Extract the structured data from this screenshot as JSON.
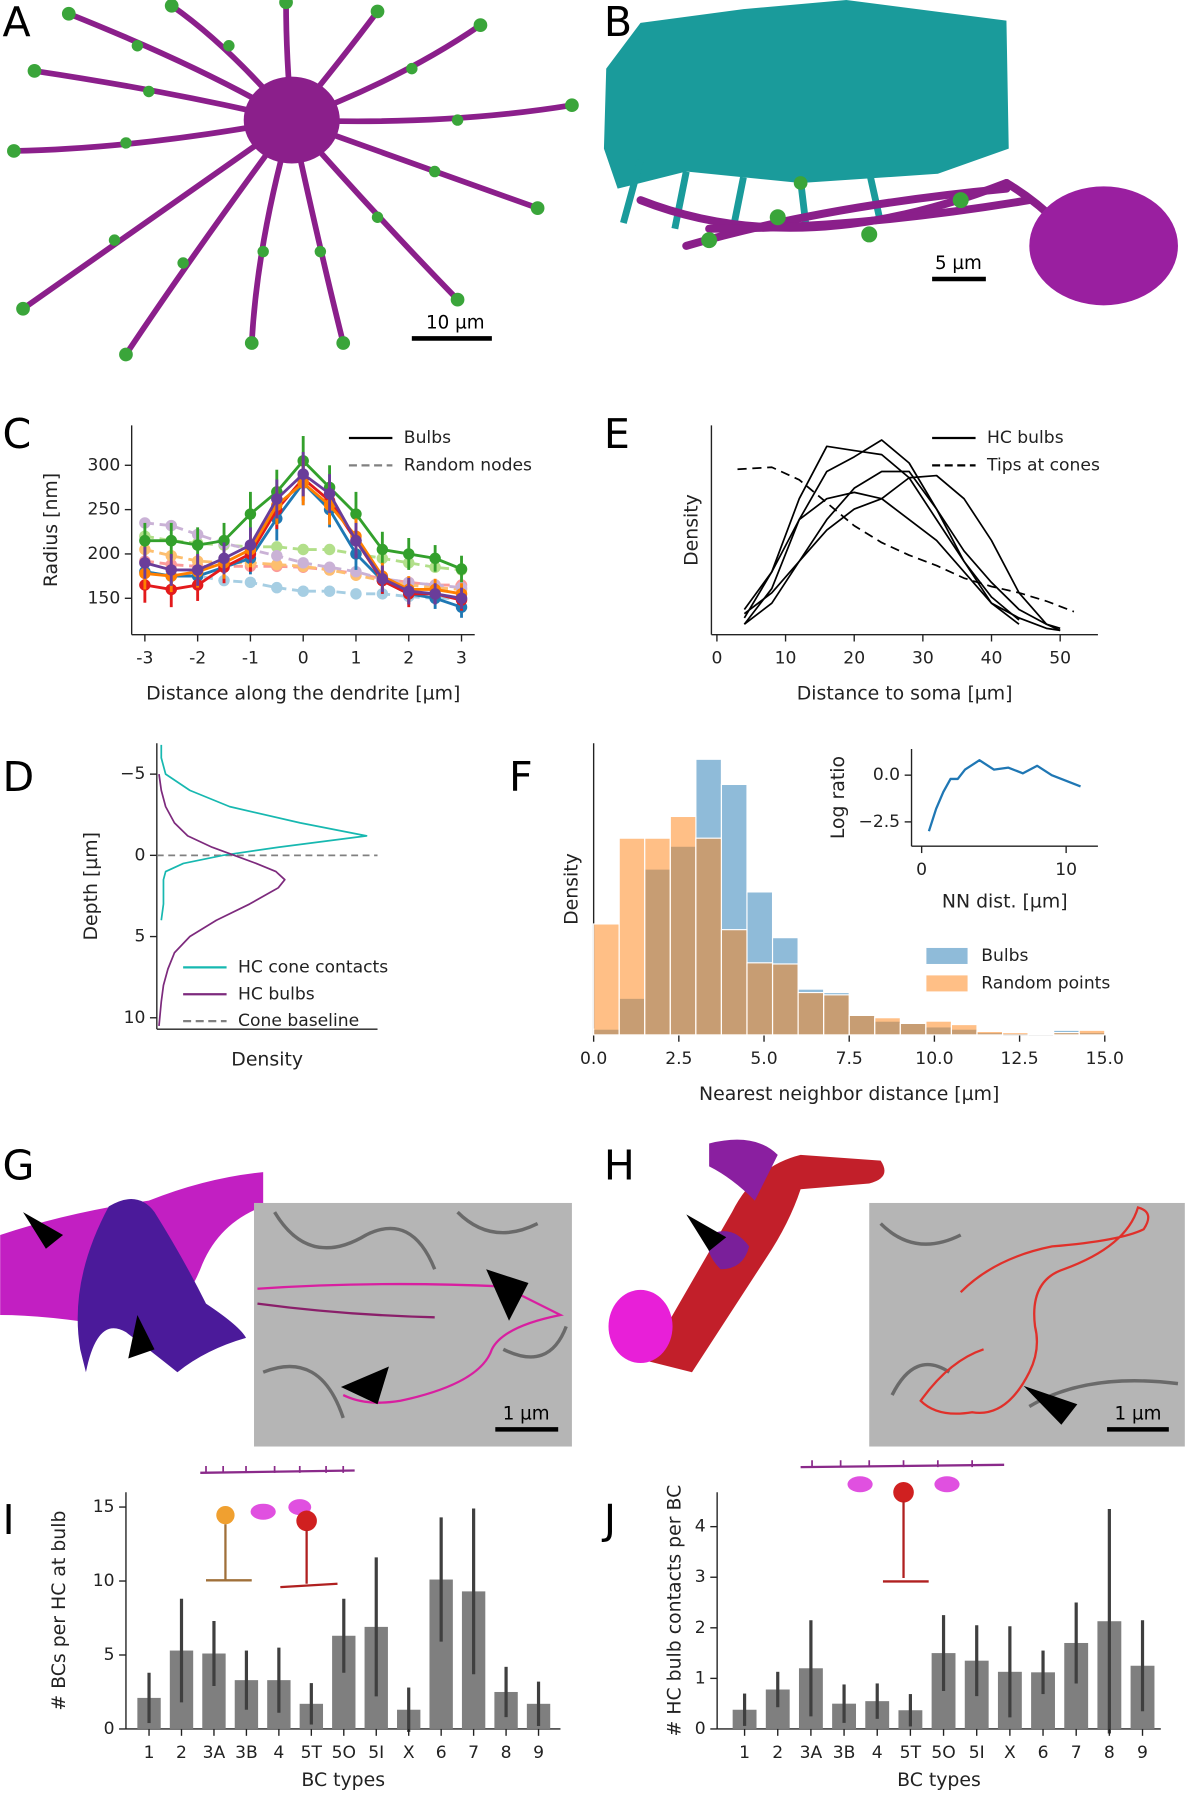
{
  "panel_labels": [
    "A",
    "B",
    "C",
    "D",
    "E",
    "F",
    "G",
    "H",
    "I",
    "J"
  ],
  "scale_bars": [
    "10 µm",
    "5 µm",
    "1 µm",
    "1 µm"
  ],
  "chart_data": [
    {
      "type": "line",
      "xlabel": "Distance along the dendrite [µm]",
      "ylabel": "Radius [nm]",
      "x": [
        -3,
        -2.5,
        -2,
        -1.5,
        -1,
        -0.5,
        0,
        0.5,
        1,
        1.5,
        2,
        2.5,
        3
      ],
      "xlim": [
        -3.25,
        3.25
      ],
      "ylim": [
        109,
        345
      ],
      "xticks": [
        -3,
        -2,
        -1,
        0,
        1,
        2,
        3
      ],
      "yticks": [
        150,
        200,
        250,
        300
      ],
      "markers": true,
      "legend": [
        {
          "label": "Bulbs",
          "linestyle": "solid",
          "color": "#000000"
        },
        {
          "label": "Random nodes",
          "linestyle": "dashed",
          "color": "#808080"
        }
      ],
      "series": [
        {
          "color": "#a6cee3",
          "linestyle": "dashed",
          "values": [
            180,
            175,
            175,
            170,
            168,
            162,
            158,
            158,
            155,
            155,
            152,
            150,
            150
          ]
        },
        {
          "color": "#b2df8a",
          "linestyle": "dashed",
          "values": [
            220,
            215,
            212,
            210,
            208,
            208,
            205,
            205,
            200,
            195,
            190,
            185,
            182
          ]
        },
        {
          "color": "#fb9a99",
          "linestyle": "dashed",
          "values": [
            192,
            188,
            186,
            186,
            186,
            186,
            185,
            182,
            178,
            172,
            168,
            165,
            165
          ]
        },
        {
          "color": "#fdbf6f",
          "linestyle": "dashed",
          "values": [
            205,
            198,
            192,
            190,
            190,
            188,
            186,
            182,
            176,
            170,
            165,
            162,
            160
          ]
        },
        {
          "color": "#cab2d6",
          "linestyle": "dashed",
          "values": [
            235,
            232,
            222,
            212,
            205,
            198,
            190,
            185,
            180,
            172,
            168,
            165,
            162
          ]
        },
        {
          "color": "#1f78b4",
          "linestyle": "solid",
          "values": [
            180,
            175,
            175,
            185,
            195,
            240,
            280,
            250,
            200,
            170,
            155,
            150,
            140
          ],
          "errors": [
            15,
            15,
            15,
            15,
            18,
            25,
            25,
            20,
            18,
            15,
            12,
            12,
            12
          ]
        },
        {
          "color": "#33a02c",
          "linestyle": "solid",
          "values": [
            215,
            215,
            210,
            215,
            245,
            270,
            305,
            275,
            245,
            205,
            200,
            195,
            183
          ],
          "errors": [
            20,
            20,
            20,
            20,
            25,
            25,
            28,
            25,
            25,
            20,
            18,
            15,
            15
          ]
        },
        {
          "color": "#e31a1c",
          "linestyle": "solid",
          "values": [
            165,
            160,
            165,
            185,
            200,
            250,
            285,
            260,
            215,
            170,
            155,
            155,
            148
          ],
          "errors": [
            20,
            20,
            18,
            18,
            20,
            22,
            25,
            22,
            20,
            15,
            15,
            12,
            12
          ]
        },
        {
          "color": "#ff7f00",
          "linestyle": "solid",
          "values": [
            178,
            175,
            180,
            190,
            205,
            255,
            280,
            255,
            220,
            175,
            160,
            160,
            155
          ],
          "errors": [
            18,
            18,
            18,
            18,
            20,
            22,
            25,
            22,
            20,
            15,
            15,
            12,
            12
          ]
        },
        {
          "color": "#6a3d9a",
          "linestyle": "solid",
          "values": [
            190,
            182,
            182,
            195,
            210,
            262,
            290,
            268,
            215,
            172,
            158,
            155,
            150
          ],
          "errors": [
            18,
            18,
            18,
            18,
            20,
            22,
            25,
            22,
            20,
            15,
            15,
            12,
            12
          ]
        }
      ]
    },
    {
      "type": "line",
      "orientation": "horizontal",
      "xlabel": "Density",
      "ylabel": "Depth [µm]",
      "y": [
        -6.8,
        -6,
        -5,
        -4,
        -3,
        -2,
        -1.2,
        -0.5,
        0,
        0.5,
        1,
        1.5,
        2,
        3,
        4,
        5,
        6,
        7,
        8,
        9,
        10.5
      ],
      "xlim": [
        0,
        1
      ],
      "ylim": [
        -6.9,
        10.7
      ],
      "y_inverted": true,
      "yticks": [
        {
          "value": -5,
          "label": "−5"
        },
        0,
        5,
        10
      ],
      "baseline": {
        "name": "Cone baseline",
        "value": 0,
        "color": "#808080"
      },
      "series": [
        {
          "name": "HC cone contacts",
          "color": "#17b8b0",
          "linestyle": "solid",
          "values": [
            0.02,
            0.02,
            0.04,
            0.15,
            0.33,
            0.65,
            0.95,
            0.55,
            0.3,
            0.12,
            0.04,
            0.03,
            0.03,
            0.03,
            0.02,
            null,
            null,
            null,
            null,
            null,
            null
          ]
        },
        {
          "name": "HC bulbs",
          "color": "#7d2a7d",
          "linestyle": "solid",
          "values": [
            null,
            null,
            0.01,
            0.02,
            0.04,
            0.08,
            0.14,
            0.25,
            0.35,
            0.45,
            0.54,
            0.58,
            0.55,
            0.42,
            0.27,
            0.15,
            0.08,
            0.05,
            0.03,
            0.02,
            0.01
          ]
        }
      ]
    },
    {
      "type": "line",
      "xlabel": "Distance to soma [µm]",
      "ylabel": "Density",
      "x": [
        4,
        8,
        12,
        16,
        20,
        24,
        28,
        32,
        36,
        40,
        44,
        48,
        50
      ],
      "xlim": [
        -0.8,
        55.5
      ],
      "ylim": [
        0,
        1
      ],
      "xticks": [
        0,
        10,
        20,
        30,
        40,
        50
      ],
      "legend": [
        {
          "label": "HC bulbs",
          "linestyle": "solid",
          "color": "#000000"
        },
        {
          "label": "Tips at cones",
          "linestyle": "dashed",
          "color": "#000000"
        }
      ],
      "series": [
        {
          "color": "#000000",
          "linestyle": "solid",
          "values": [
            0.05,
            0.22,
            0.55,
            0.78,
            0.85,
            0.93,
            0.82,
            0.6,
            0.35,
            0.15,
            0.08,
            0.03,
            0.02
          ]
        },
        {
          "color": "#000000",
          "linestyle": "solid",
          "values": [
            0.08,
            0.3,
            0.65,
            0.9,
            0.88,
            0.86,
            0.75,
            0.55,
            0.35,
            0.18,
            0.07,
            null,
            null
          ]
        },
        {
          "color": "#000000",
          "linestyle": "solid",
          "values": [
            0.1,
            0.2,
            0.35,
            0.5,
            0.6,
            0.65,
            0.75,
            0.76,
            0.65,
            0.45,
            0.2,
            0.05,
            0.02
          ]
        },
        {
          "color": "#000000",
          "linestyle": "solid",
          "values": [
            0.05,
            0.15,
            0.35,
            0.55,
            0.7,
            0.78,
            0.78,
            0.6,
            0.4,
            0.25,
            0.12,
            0.05,
            0.03
          ]
        },
        {
          "color": "#000000",
          "linestyle": "solid",
          "values": [
            0.12,
            0.3,
            0.55,
            0.65,
            0.68,
            0.65,
            0.55,
            0.45,
            0.3,
            0.15,
            0.05,
            null,
            null
          ]
        },
        {
          "color": "#000000",
          "linestyle": "dashed",
          "x": [
            3,
            8,
            12,
            16,
            20,
            24,
            28,
            32,
            36,
            40,
            44,
            48,
            52
          ],
          "values": [
            0.79,
            0.8,
            0.74,
            0.63,
            0.52,
            0.44,
            0.38,
            0.33,
            0.27,
            0.23,
            0.2,
            0.16,
            0.11
          ]
        }
      ]
    },
    {
      "type": "histogram",
      "xlabel": "Nearest neighbor distance [µm]",
      "ylabel": "Density",
      "opacity": 0.5,
      "bins": [
        0,
        0.75,
        1.5,
        2.25,
        3,
        3.75,
        4.5,
        5.25,
        6,
        6.75,
        7.5,
        8.25,
        9,
        9.75,
        10.5,
        11.25,
        12,
        12.75,
        13.5,
        14.25,
        15
      ],
      "xlim": [
        0,
        15
      ],
      "ylim": [
        0,
        0.255
      ],
      "xticks": [
        {
          "value": 0,
          "label": "0.0"
        },
        {
          "value": 2.5,
          "label": "2.5"
        },
        {
          "value": 5,
          "label": "5.0"
        },
        {
          "value": 7.5,
          "label": "7.5"
        },
        {
          "value": 10,
          "label": "10.0"
        },
        {
          "value": 12.5,
          "label": "12.5"
        },
        {
          "value": 15,
          "label": "15.0"
        }
      ],
      "series": [
        {
          "name": "Bulbs",
          "color": "#1f77b4",
          "values": [
            0.005,
            0.032,
            0.145,
            0.165,
            0.241,
            0.219,
            0.125,
            0.085,
            0.04,
            0.037,
            0.017,
            0.012,
            0.01,
            0.007,
            0.005,
            0.002,
            0,
            0,
            0.004,
            0.002
          ]
        },
        {
          "name": "Random points",
          "color": "#ff7f0e",
          "values": [
            0.097,
            0.172,
            0.172,
            0.191,
            0.172,
            0.092,
            0.063,
            0.062,
            0.037,
            0.035,
            0.017,
            0.015,
            0.01,
            0.012,
            0.009,
            0.003,
            0.002,
            0.001,
            0.002,
            0.004
          ]
        }
      ]
    },
    {
      "type": "line",
      "xlabel": "NN dist. [µm]",
      "ylabel": "Log ratio",
      "x": [
        0.5,
        1,
        1.5,
        2,
        2.5,
        3,
        4,
        5,
        6,
        7,
        8,
        9,
        10,
        11
      ],
      "xlim": [
        -0.7,
        12.2
      ],
      "ylim": [
        -3.8,
        1.4
      ],
      "xticks": [
        0,
        10
      ],
      "yticks": [
        {
          "value": 0,
          "label": "0.0"
        },
        {
          "value": -2.5,
          "label": "−2.5"
        }
      ],
      "series": [
        {
          "color": "#1f77b4",
          "linestyle": "solid",
          "values": [
            -3.0,
            -1.8,
            -0.9,
            -0.2,
            -0.2,
            0.3,
            0.8,
            0.3,
            0.4,
            0.1,
            0.5,
            0.0,
            -0.3,
            -0.6
          ]
        }
      ]
    },
    {
      "type": "bar",
      "xlabel": "BC types",
      "ylabel": "# BCs per HC at bulb",
      "categories": [
        "1",
        "2",
        "3A",
        "3B",
        "4",
        "5T",
        "5O",
        "5I",
        "X",
        "6",
        "7",
        "8",
        "9"
      ],
      "values": [
        2.1,
        5.3,
        5.1,
        3.3,
        3.3,
        1.7,
        6.3,
        6.9,
        1.3,
        10.1,
        9.3,
        2.5,
        1.7
      ],
      "errors": [
        1.7,
        3.5,
        2.2,
        2.0,
        2.2,
        1.4,
        2.5,
        4.7,
        1.5,
        4.2,
        5.6,
        1.7,
        1.5
      ],
      "color": "#7f7f7f",
      "error_color": "#3f3f3f",
      "ylim": [
        0,
        16
      ],
      "yticks": [
        0,
        5,
        10,
        15
      ]
    },
    {
      "type": "bar",
      "xlabel": "BC types",
      "ylabel": "# HC bulb contacts per BC",
      "categories": [
        "1",
        "2",
        "3A",
        "3B",
        "4",
        "5T",
        "5O",
        "5I",
        "X",
        "6",
        "7",
        "8",
        "9"
      ],
      "values": [
        0.38,
        0.78,
        1.2,
        0.5,
        0.55,
        0.37,
        1.5,
        1.35,
        1.13,
        1.12,
        1.7,
        2.13,
        1.25
      ],
      "errors": [
        0.32,
        0.35,
        0.95,
        0.38,
        0.35,
        0.32,
        0.75,
        0.7,
        0.9,
        0.43,
        0.8,
        2.22,
        0.9
      ],
      "color": "#7f7f7f",
      "error_color": "#3f3f3f",
      "ylim": [
        0,
        4.68
      ],
      "yticks": [
        0,
        1,
        2,
        3,
        4
      ]
    }
  ]
}
